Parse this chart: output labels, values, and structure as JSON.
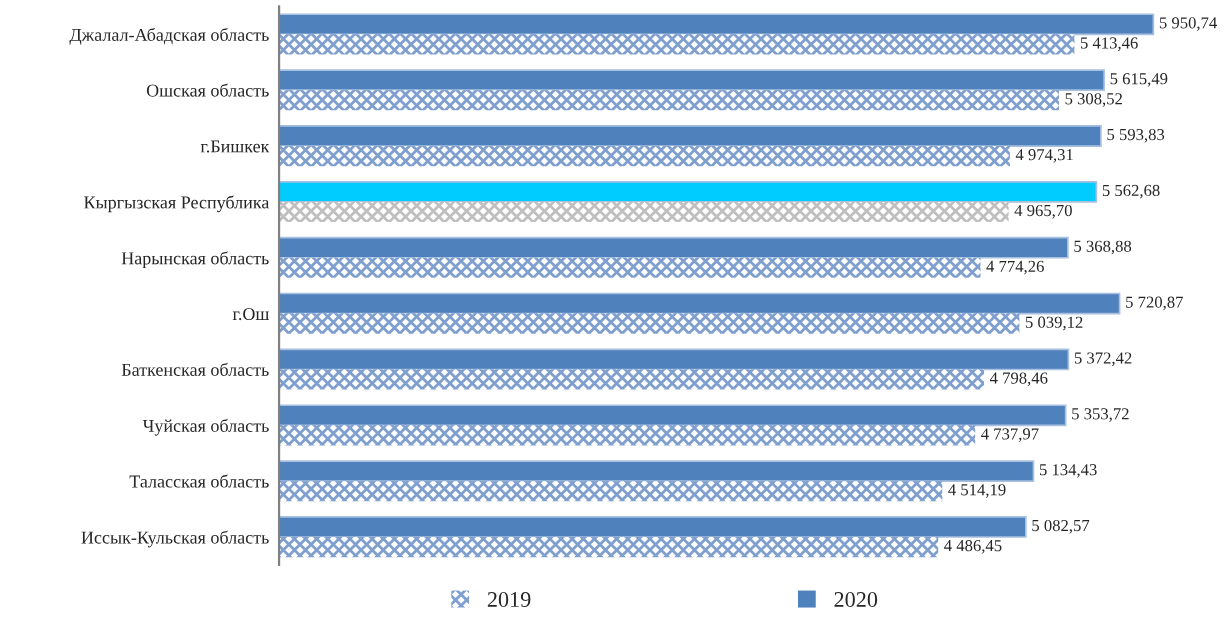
{
  "chart_data": {
    "type": "bar",
    "orientation": "horizontal",
    "data_labels": true,
    "legend": "bottom",
    "grid": false,
    "categories": [
      "Джалал-Абадская область",
      "Ошская область",
      "г.Бишкек",
      "Кыргызская Республика",
      "Нарынская область",
      "г.Ош",
      "Баткенская область",
      "Чуйская область",
      "Таласская область",
      "Иссык-Кульская область"
    ],
    "series": [
      {
        "name": "2020",
        "color": "#4f81bd",
        "colors": [
          "#4f81bd",
          "#4f81bd",
          "#4f81bd",
          "#00ccff",
          "#4f81bd",
          "#4f81bd",
          "#4f81bd",
          "#4f81bd",
          "#4f81bd",
          "#4f81bd"
        ],
        "values": [
          5950.74,
          5615.49,
          5593.83,
          5562.68,
          5368.88,
          5720.87,
          5372.42,
          5353.72,
          5134.43,
          5082.57
        ],
        "value_labels": [
          "5 950,74",
          "5 615,49",
          "5 593,83",
          "5 562,68",
          "5 368,88",
          "5 720,87",
          "5 372,42",
          "5 353,72",
          "5 134,43",
          "5 082,57"
        ]
      },
      {
        "name": "2019",
        "color": "#7f9fcf",
        "colors": [
          "#7f9fcf",
          "#7f9fcf",
          "#7f9fcf",
          "#bfbfbf",
          "#7f9fcf",
          "#7f9fcf",
          "#7f9fcf",
          "#7f9fcf",
          "#7f9fcf",
          "#7f9fcf"
        ],
        "values": [
          5413.46,
          5308.52,
          4974.31,
          4965.7,
          4774.26,
          5039.12,
          4798.46,
          4737.97,
          4514.19,
          4486.45
        ],
        "value_labels": [
          "5 413,46",
          "5 308,52",
          "4 974,31",
          "4 965,70",
          "4 774,26",
          "5 039,12",
          "4 798,46",
          "4 737,97",
          "4 514,19",
          "4 486,45"
        ]
      }
    ]
  }
}
